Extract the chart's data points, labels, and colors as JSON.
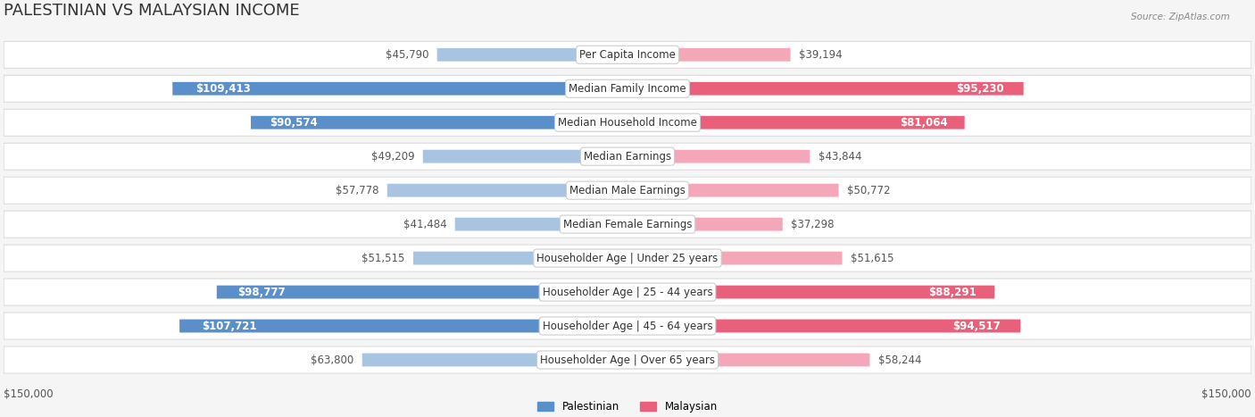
{
  "title": "PALESTINIAN VS MALAYSIAN INCOME",
  "source": "Source: ZipAtlas.com",
  "categories": [
    "Per Capita Income",
    "Median Family Income",
    "Median Household Income",
    "Median Earnings",
    "Median Male Earnings",
    "Median Female Earnings",
    "Householder Age | Under 25 years",
    "Householder Age | 25 - 44 years",
    "Householder Age | 45 - 64 years",
    "Householder Age | Over 65 years"
  ],
  "palestinian_values": [
    45790,
    109413,
    90574,
    49209,
    57778,
    41484,
    51515,
    98777,
    107721,
    63800
  ],
  "malaysian_values": [
    39194,
    95230,
    81064,
    43844,
    50772,
    37298,
    51615,
    88291,
    94517,
    58244
  ],
  "palestinian_labels": [
    "$45,790",
    "$109,413",
    "$90,574",
    "$49,209",
    "$57,778",
    "$41,484",
    "$51,515",
    "$98,777",
    "$107,721",
    "$63,800"
  ],
  "malaysian_labels": [
    "$39,194",
    "$95,230",
    "$81,064",
    "$43,844",
    "$50,772",
    "$37,298",
    "$51,615",
    "$88,291",
    "$94,517",
    "$58,244"
  ],
  "palestinian_color_light": "#a8c4e0",
  "palestinian_color_dark": "#5b8fc9",
  "malaysian_color_light": "#f4a7b9",
  "malaysian_color_dark": "#e8607a",
  "max_value": 150000,
  "background_color": "#f5f5f5",
  "row_background": "#ffffff",
  "legend_palestinian": "Palestinian",
  "legend_malaysian": "Malaysian",
  "title_fontsize": 13,
  "label_fontsize": 8.5,
  "category_fontsize": 8.5,
  "axis_label": "$150,000"
}
